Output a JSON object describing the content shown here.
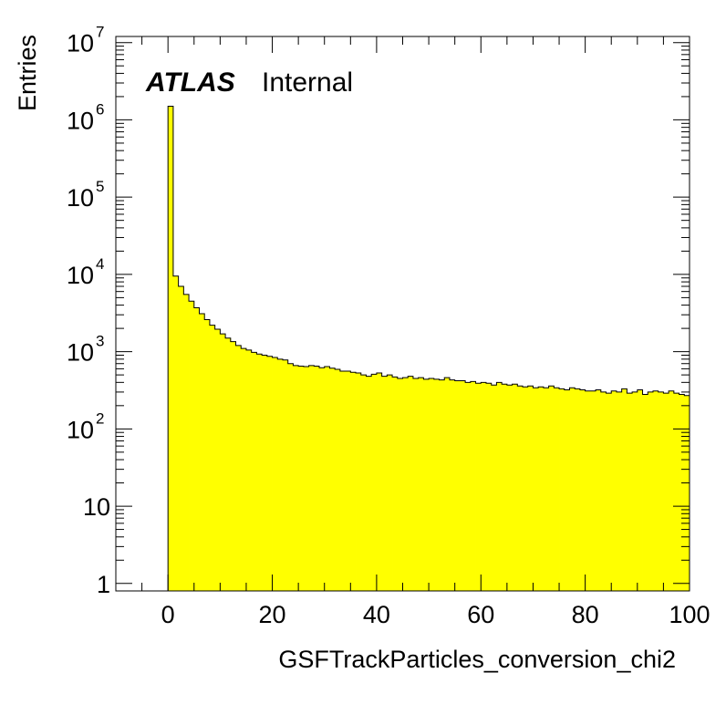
{
  "chart_data": {
    "type": "bar",
    "title": "",
    "xlabel": "GSFTrackParticles_conversion_chi2",
    "ylabel": "Entries",
    "xlim": [
      -10,
      100
    ],
    "ylim": [
      0.8,
      12000000
    ],
    "yscale": "log",
    "grid": false,
    "legend": "none",
    "annotation": {
      "bold": "ATLAS",
      "normal": "Internal"
    },
    "x_ticks": [
      0,
      20,
      40,
      60,
      80,
      100
    ],
    "y_ticks": [
      {
        "value": 1,
        "base": "1",
        "exp": ""
      },
      {
        "value": 10,
        "base": "10",
        "exp": ""
      },
      {
        "value": 100,
        "base": "10",
        "exp": "2"
      },
      {
        "value": 1000,
        "base": "10",
        "exp": "3"
      },
      {
        "value": 10000,
        "base": "10",
        "exp": "4"
      },
      {
        "value": 100000,
        "base": "10",
        "exp": "5"
      },
      {
        "value": 1000000,
        "base": "10",
        "exp": "6"
      },
      {
        "value": 10000000,
        "base": "10",
        "exp": "7"
      }
    ],
    "bin_start": 0,
    "bin_width": 1,
    "fill_color": "#ffff00",
    "line_color": "#000000",
    "values": [
      1500000,
      9500,
      7000,
      5500,
      4500,
      3700,
      3100,
      2600,
      2200,
      1950,
      1700,
      1500,
      1350,
      1200,
      1100,
      1050,
      980,
      930,
      900,
      870,
      840,
      800,
      780,
      700,
      660,
      650,
      640,
      660,
      650,
      620,
      640,
      610,
      590,
      560,
      560,
      540,
      530,
      500,
      480,
      510,
      530,
      480,
      500,
      470,
      450,
      460,
      480,
      450,
      460,
      440,
      450,
      440,
      430,
      460,
      430,
      420,
      420,
      400,
      410,
      390,
      400,
      390,
      370,
      400,
      380,
      370,
      380,
      360,
      350,
      360,
      340,
      350,
      340,
      360,
      340,
      330,
      320,
      340,
      330,
      320,
      310,
      310,
      320,
      300,
      290,
      310,
      300,
      330,
      290,
      300,
      320,
      280,
      300,
      310,
      300,
      290,
      310,
      290,
      280,
      270
    ]
  }
}
